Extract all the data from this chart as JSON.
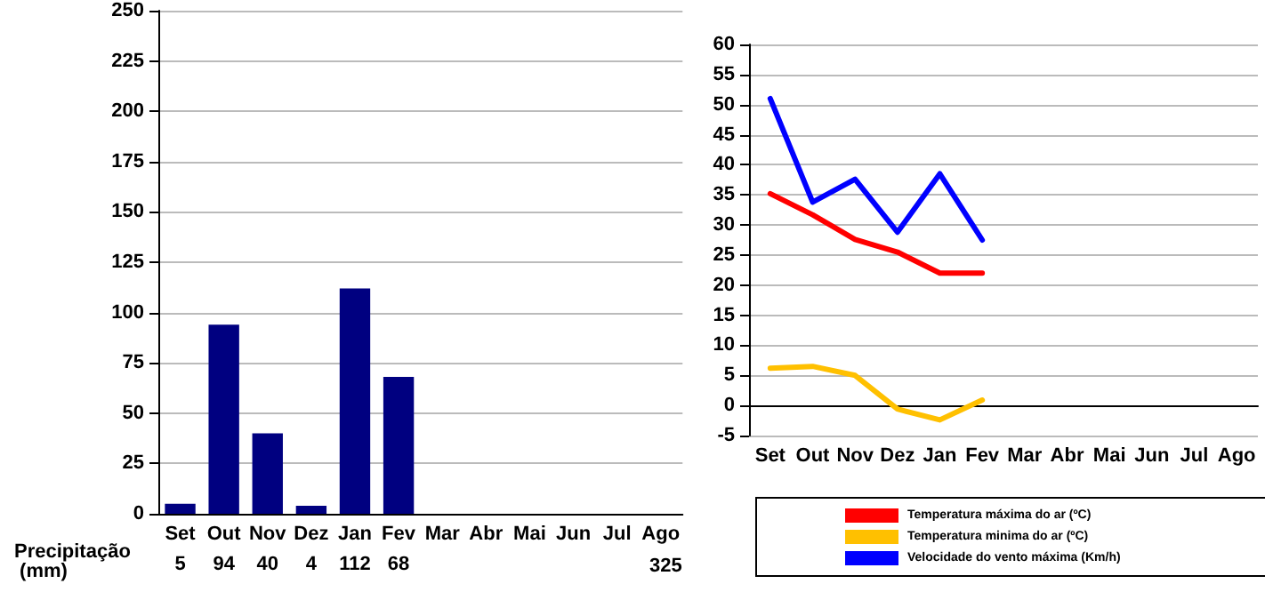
{
  "chart_data": [
    {
      "type": "bar",
      "categories": [
        "Set",
        "Out",
        "Nov",
        "Dez",
        "Jan",
        "Fev",
        "Mar",
        "Abr",
        "Mai",
        "Jun",
        "Jul",
        "Ago"
      ],
      "values": [
        5,
        94,
        40,
        4,
        112,
        68,
        null,
        null,
        null,
        null,
        null,
        null
      ],
      "color": "#000080",
      "ylim": [
        0,
        250
      ],
      "yticks": [
        0,
        25,
        50,
        75,
        100,
        125,
        150,
        175,
        200,
        225,
        250
      ],
      "grid": "y",
      "data_labels": true,
      "annotations": [
        "Precipitação (mm)",
        "325"
      ]
    },
    {
      "type": "line",
      "categories": [
        "Set",
        "Out",
        "Nov",
        "Dez",
        "Jan",
        "Fev",
        "Mar",
        "Abr",
        "Mai",
        "Jun",
        "Jul",
        "Ago"
      ],
      "series": [
        {
          "name": "Temperatura máxima do ar (ºC)",
          "color": "#ff0000",
          "values": [
            35.2,
            31.7,
            27.6,
            25.5,
            22,
            22,
            null,
            null,
            null,
            null,
            null,
            null
          ]
        },
        {
          "name": "Temperatura minima do ar (ºC)",
          "color": "#ffc000",
          "values": [
            6.2,
            6.5,
            5,
            -0.6,
            -2.4,
            0.9,
            null,
            null,
            null,
            null,
            null,
            null
          ]
        },
        {
          "name": "Velocidade do vento máxima (Km/h)",
          "color": "#0000ff",
          "values": [
            51,
            33.8,
            37.6,
            28.8,
            38.5,
            27.5,
            null,
            null,
            null,
            null,
            null,
            null
          ]
        }
      ],
      "ylim": [
        -5,
        60
      ],
      "yticks": [
        -5,
        0,
        5,
        10,
        15,
        20,
        25,
        30,
        35,
        40,
        45,
        50,
        55,
        60
      ],
      "grid": "y",
      "legend": "bottom"
    }
  ]
}
